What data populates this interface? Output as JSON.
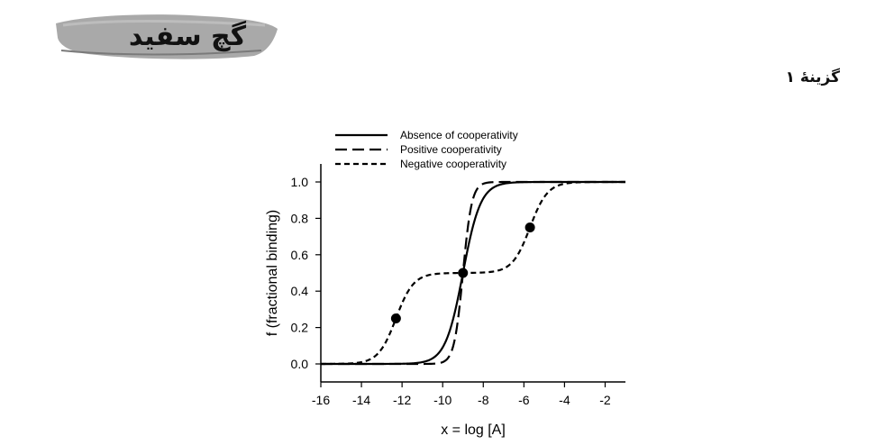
{
  "logo": {
    "text": "گچ سفید"
  },
  "header": {
    "option_label": "گزینهٔ ۱"
  },
  "colors": {
    "ink": "#000000",
    "logo_brush": "#9a9a9a",
    "logo_text": "#111111"
  },
  "chart_data": {
    "type": "line",
    "xlabel": "x = log [A]",
    "ylabel": "f (fractional binding)",
    "xlim": [
      -16,
      -1
    ],
    "ylim": [
      0,
      1.0
    ],
    "xticks": [
      -16,
      -14,
      -12,
      -10,
      -8,
      -6,
      -4,
      -2
    ],
    "yticks": [
      0.0,
      0.2,
      0.4,
      0.6,
      0.8,
      1.0
    ],
    "yticklabels": [
      "0.0",
      "0.2",
      "0.4",
      "0.6",
      "0.8",
      "1.0"
    ],
    "legend": {
      "position": "top",
      "entries": [
        "Absence of cooperativity",
        "Positive cooperativity",
        "Negative cooperativity"
      ]
    },
    "series": [
      {
        "name": "Absence of cooperativity",
        "style": "solid",
        "midpoint": -9,
        "hill": 1,
        "x": [
          -16,
          -12,
          -11,
          -10,
          -9.5,
          -9,
          -8.5,
          -8,
          -7,
          -6,
          -1
        ],
        "y": [
          0.0,
          0.001,
          0.01,
          0.09,
          0.24,
          0.5,
          0.76,
          0.91,
          0.99,
          1.0,
          1.0
        ]
      },
      {
        "name": "Positive cooperativity",
        "style": "dashed",
        "midpoint": -9,
        "hill": 2,
        "x": [
          -16,
          -11,
          -10,
          -9.5,
          -9,
          -8.5,
          -8,
          -7,
          -1
        ],
        "y": [
          0.0,
          0.0001,
          0.01,
          0.09,
          0.5,
          0.91,
          0.99,
          1.0,
          1.0
        ]
      },
      {
        "name": "Negative cooperativity",
        "style": "short-dashed",
        "midpoints": [
          -12.3,
          -5.7
        ],
        "hill": 1,
        "x": [
          -16,
          -14,
          -13,
          -12.3,
          -11.5,
          -10,
          -9,
          -8,
          -6.5,
          -5.7,
          -5,
          -4,
          -1
        ],
        "y": [
          0.0,
          0.01,
          0.08,
          0.25,
          0.43,
          0.5,
          0.5,
          0.5,
          0.57,
          0.75,
          0.92,
          0.99,
          1.0
        ]
      }
    ],
    "markers": [
      {
        "x": -12.3,
        "y": 0.25
      },
      {
        "x": -9.0,
        "y": 0.5
      },
      {
        "x": -5.7,
        "y": 0.75
      }
    ]
  }
}
